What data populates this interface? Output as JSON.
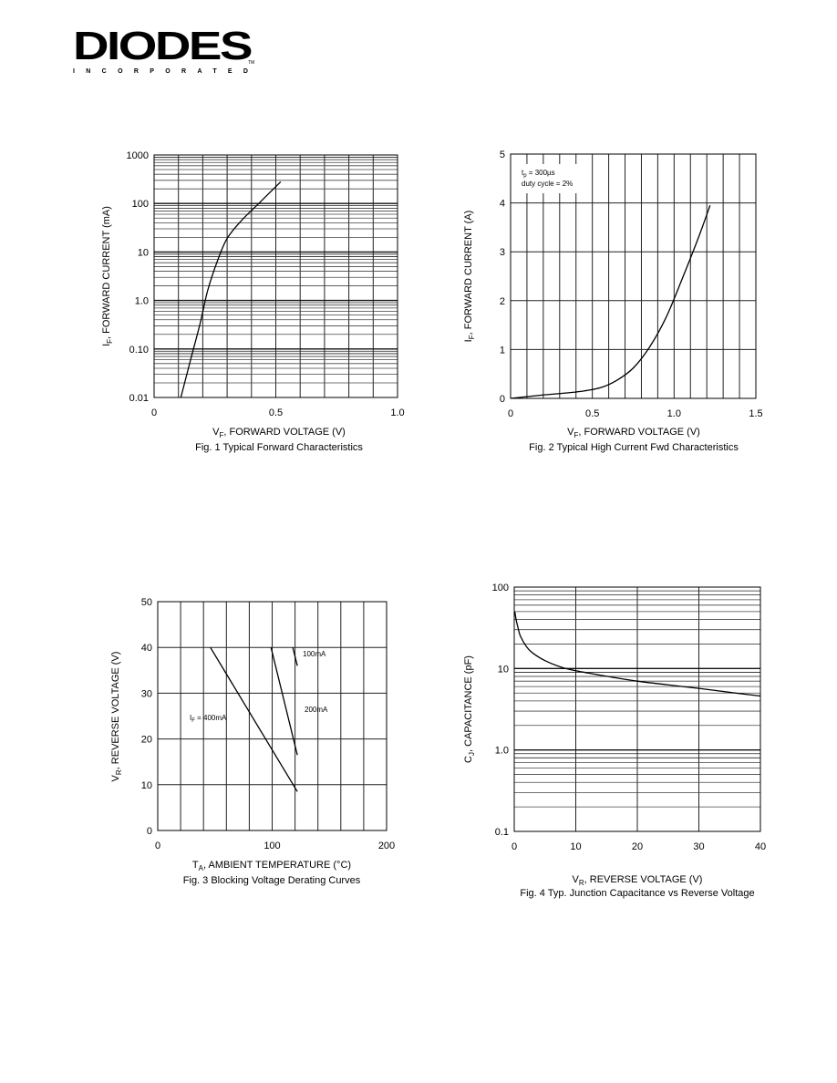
{
  "logo": {
    "name": "DIODES",
    "sub": "INCORPORATED",
    "tm": "TM"
  },
  "chart_data": [
    {
      "type": "line",
      "title": "Fig. 1  Typical Forward Characteristics",
      "xlabel": "V",
      "xlabel_sub": "F",
      "xlabel_rest": ", FORWARD VOLTAGE (V)",
      "ylabel": "I",
      "ylabel_sub": "F",
      "ylabel_rest": ", FORWARD CURRENT (mA)",
      "xlim": [
        0,
        1.0
      ],
      "ylim": [
        0.01,
        1000
      ],
      "yscale": "log",
      "grid": true,
      "xticks": [
        "0",
        "0.5",
        "1.0"
      ],
      "xtick_values": [
        0,
        0.5,
        1.0
      ],
      "yticks": [
        "0.01",
        "0.10",
        "1.0",
        "10",
        "100",
        "1000"
      ],
      "ytick_values": [
        0.01,
        0.1,
        1,
        10,
        100,
        1000
      ],
      "series": [
        {
          "x": [
            0.11,
            0.15,
            0.19,
            0.22,
            0.26,
            0.3,
            0.36,
            0.43,
            0.52
          ],
          "y": [
            0.01,
            0.06,
            0.35,
            1.6,
            6.5,
            19,
            45,
            100,
            280
          ]
        }
      ]
    },
    {
      "type": "line",
      "title": "Fig. 2  Typical High Current Fwd Characteristics",
      "xlabel": "V",
      "xlabel_sub": "F",
      "xlabel_rest": ", FORWARD VOLTAGE (V)",
      "ylabel": "I",
      "ylabel_sub": "F",
      "ylabel_rest": ", FORWARD CURRENT (A)",
      "xlim": [
        0,
        1.5
      ],
      "ylim": [
        0,
        5
      ],
      "yscale": "linear",
      "grid": true,
      "xticks": [
        "0",
        "0.5",
        "1.0",
        "1.5"
      ],
      "xtick_values": [
        0,
        0.5,
        1.0,
        1.5
      ],
      "yticks": [
        "0",
        "1",
        "2",
        "3",
        "4",
        "5"
      ],
      "ytick_values": [
        0,
        1,
        2,
        3,
        4,
        5
      ],
      "annotations": [
        "t",
        "p",
        " = 300µs",
        "duty cycle = 2%"
      ],
      "series": [
        {
          "x": [
            0,
            0.2,
            0.4,
            0.55,
            0.65,
            0.75,
            0.85,
            0.95,
            1.05,
            1.15,
            1.22
          ],
          "y": [
            0,
            0.07,
            0.13,
            0.22,
            0.37,
            0.62,
            1.05,
            1.65,
            2.45,
            3.3,
            3.95
          ]
        }
      ]
    },
    {
      "type": "line",
      "title": "Fig. 3  Blocking Voltage Derating Curves",
      "xlabel": "T",
      "xlabel_sub": "A",
      "xlabel_rest": ", AMBIENT TEMPERATURE (°C)",
      "ylabel": "V",
      "ylabel_sub": "R",
      "ylabel_rest": ", REVERSE VOLTAGE (V)",
      "xlim": [
        0,
        200
      ],
      "ylim": [
        0,
        50
      ],
      "yscale": "linear",
      "grid": true,
      "xticks": [
        "0",
        "100",
        "200"
      ],
      "xtick_values": [
        0,
        100,
        200
      ],
      "yticks": [
        "0",
        "10",
        "20",
        "30",
        "40",
        "50"
      ],
      "ytick_values": [
        0,
        10,
        20,
        30,
        40,
        50
      ],
      "series": [
        {
          "name": "I",
          "name_sub": "F",
          "name_rest": " = 400mA",
          "x": [
            46,
            122
          ],
          "y": [
            40,
            8.5
          ]
        },
        {
          "name": "200mA",
          "x": [
            99,
            122
          ],
          "y": [
            40,
            16.5
          ]
        },
        {
          "name": "100mA",
          "x": [
            118,
            122
          ],
          "y": [
            40,
            36
          ]
        }
      ]
    },
    {
      "type": "line",
      "title": "Fig. 4 Typ. Junction Capacitance vs Reverse Voltage",
      "xlabel": "V",
      "xlabel_sub": "R",
      "xlabel_rest": ", REVERSE VOLTAGE (V)",
      "ylabel": "C",
      "ylabel_sub": "J",
      "ylabel_rest": ", CAPACITANCE (pF)",
      "xlim": [
        0,
        40
      ],
      "ylim": [
        0.1,
        100
      ],
      "yscale": "log",
      "grid": true,
      "xticks": [
        "0",
        "10",
        "20",
        "30",
        "40"
      ],
      "xtick_values": [
        0,
        10,
        20,
        30,
        40
      ],
      "yticks": [
        "0.1",
        "1.0",
        "10",
        "100"
      ],
      "ytick_values": [
        0.1,
        1,
        10,
        100
      ],
      "series": [
        {
          "x": [
            0.1,
            0.3,
            0.6,
            1,
            2,
            3,
            5,
            8,
            12,
            16,
            20,
            25,
            30,
            35,
            40
          ],
          "y": [
            50,
            40,
            32,
            25,
            18.5,
            15.5,
            12.5,
            10.2,
            8.8,
            7.8,
            7,
            6.3,
            5.7,
            5.1,
            4.6
          ]
        }
      ]
    }
  ]
}
